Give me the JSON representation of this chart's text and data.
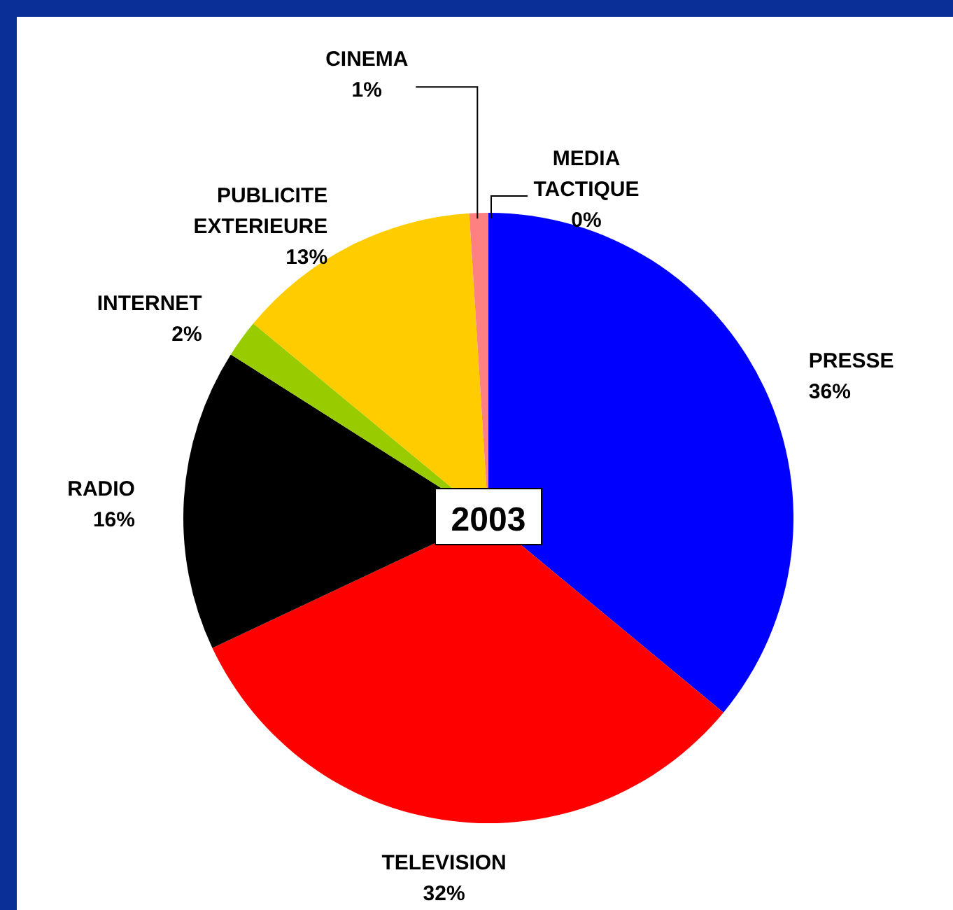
{
  "chart_data": {
    "type": "pie",
    "title": "2003",
    "categories": [
      "MEDIA TACTIQUE",
      "PRESSE",
      "TELEVISION",
      "RADIO",
      "INTERNET",
      "PUBLICITE EXTERIEURE",
      "CINEMA"
    ],
    "values": [
      0,
      36,
      32,
      16,
      2,
      13,
      1
    ],
    "colors": [
      "#cc99ff",
      "#0000ff",
      "#ff0000",
      "#000000",
      "#99cc00",
      "#ffcc00",
      "#ff8080"
    ],
    "value_labels": [
      "0%",
      "36%",
      "32%",
      "16%",
      "2%",
      "13%",
      "1%"
    ],
    "legend": false
  }
}
